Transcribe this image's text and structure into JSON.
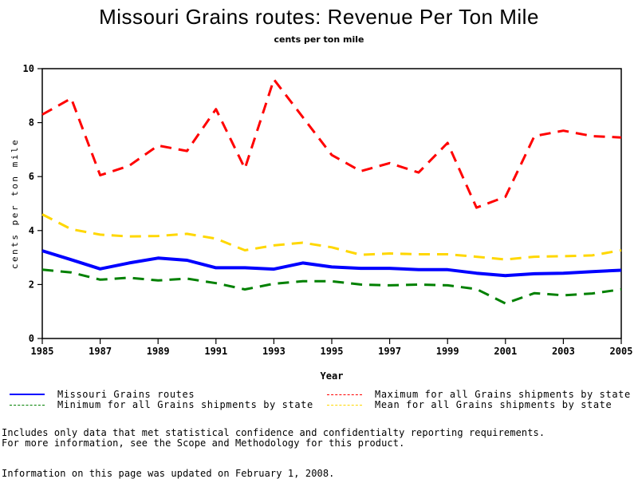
{
  "chart_data": {
    "type": "line",
    "title": "Missouri Grains routes: Revenue Per Ton Mile",
    "subtitle": "cents per ton mile",
    "xlabel": "Year",
    "ylabel": "cents per ton mile",
    "xlim": [
      1985,
      2005
    ],
    "ylim": [
      0,
      10
    ],
    "x_ticks": [
      1985,
      1987,
      1989,
      1991,
      1993,
      1995,
      1997,
      1999,
      2001,
      2003,
      2005
    ],
    "y_ticks": [
      0,
      2,
      4,
      6,
      8,
      10
    ],
    "grid": false,
    "legend_position": "bottom",
    "x": [
      1985,
      1986,
      1987,
      1988,
      1989,
      1990,
      1991,
      1992,
      1993,
      1994,
      1995,
      1996,
      1997,
      1998,
      1999,
      2000,
      2001,
      2002,
      2003,
      2004,
      2005
    ],
    "series": [
      {
        "name": "Missouri Grains routes",
        "color": "#0000ff",
        "style": "solid",
        "values": [
          3.25,
          2.92,
          2.58,
          2.8,
          2.98,
          2.9,
          2.62,
          2.62,
          2.57,
          2.8,
          2.65,
          2.6,
          2.6,
          2.55,
          2.55,
          2.42,
          2.33,
          2.4,
          2.42,
          2.48,
          2.53
        ]
      },
      {
        "name": "Maximum for all Grains shipments by state",
        "color": "#ff0000",
        "style": "dashed",
        "values": [
          8.3,
          8.9,
          6.05,
          6.4,
          7.15,
          6.95,
          8.5,
          6.3,
          9.6,
          8.2,
          6.8,
          6.2,
          6.5,
          6.15,
          7.25,
          4.85,
          5.25,
          7.5,
          7.7,
          7.5,
          7.45
        ]
      },
      {
        "name": "Minimum for all Grains shipments by state",
        "color": "#008000",
        "style": "dashed",
        "values": [
          2.55,
          2.45,
          2.18,
          2.25,
          2.15,
          2.22,
          2.05,
          1.82,
          2.03,
          2.12,
          2.12,
          2.0,
          1.97,
          2.0,
          1.97,
          1.83,
          1.3,
          1.68,
          1.6,
          1.67,
          1.82
        ]
      },
      {
        "name": "Mean for all Grains shipments by state",
        "color": "#ffd700",
        "style": "dashed",
        "values": [
          4.6,
          4.05,
          3.85,
          3.78,
          3.8,
          3.88,
          3.7,
          3.27,
          3.45,
          3.55,
          3.38,
          3.1,
          3.15,
          3.12,
          3.12,
          3.03,
          2.93,
          3.03,
          3.05,
          3.08,
          3.27
        ]
      }
    ]
  },
  "legend": [
    {
      "label": "Missouri Grains routes",
      "color": "#0000ff",
      "style": "solid"
    },
    {
      "label": "Maximum for all Grains shipments by state",
      "color": "#ff0000",
      "style": "dashed"
    },
    {
      "label": "Minimum for all Grains shipments by state",
      "color": "#008000",
      "style": "dashed"
    },
    {
      "label": "Mean for all Grains shipments by state",
      "color": "#ffd700",
      "style": "dashed"
    }
  ],
  "notes": {
    "line1": "Includes only data that met statistical confidence and confidentialty reporting requirements.",
    "line2": "For more information, see the Scope and Methodology for this product.",
    "updated": "Information on this page was updated on February 1, 2008."
  }
}
